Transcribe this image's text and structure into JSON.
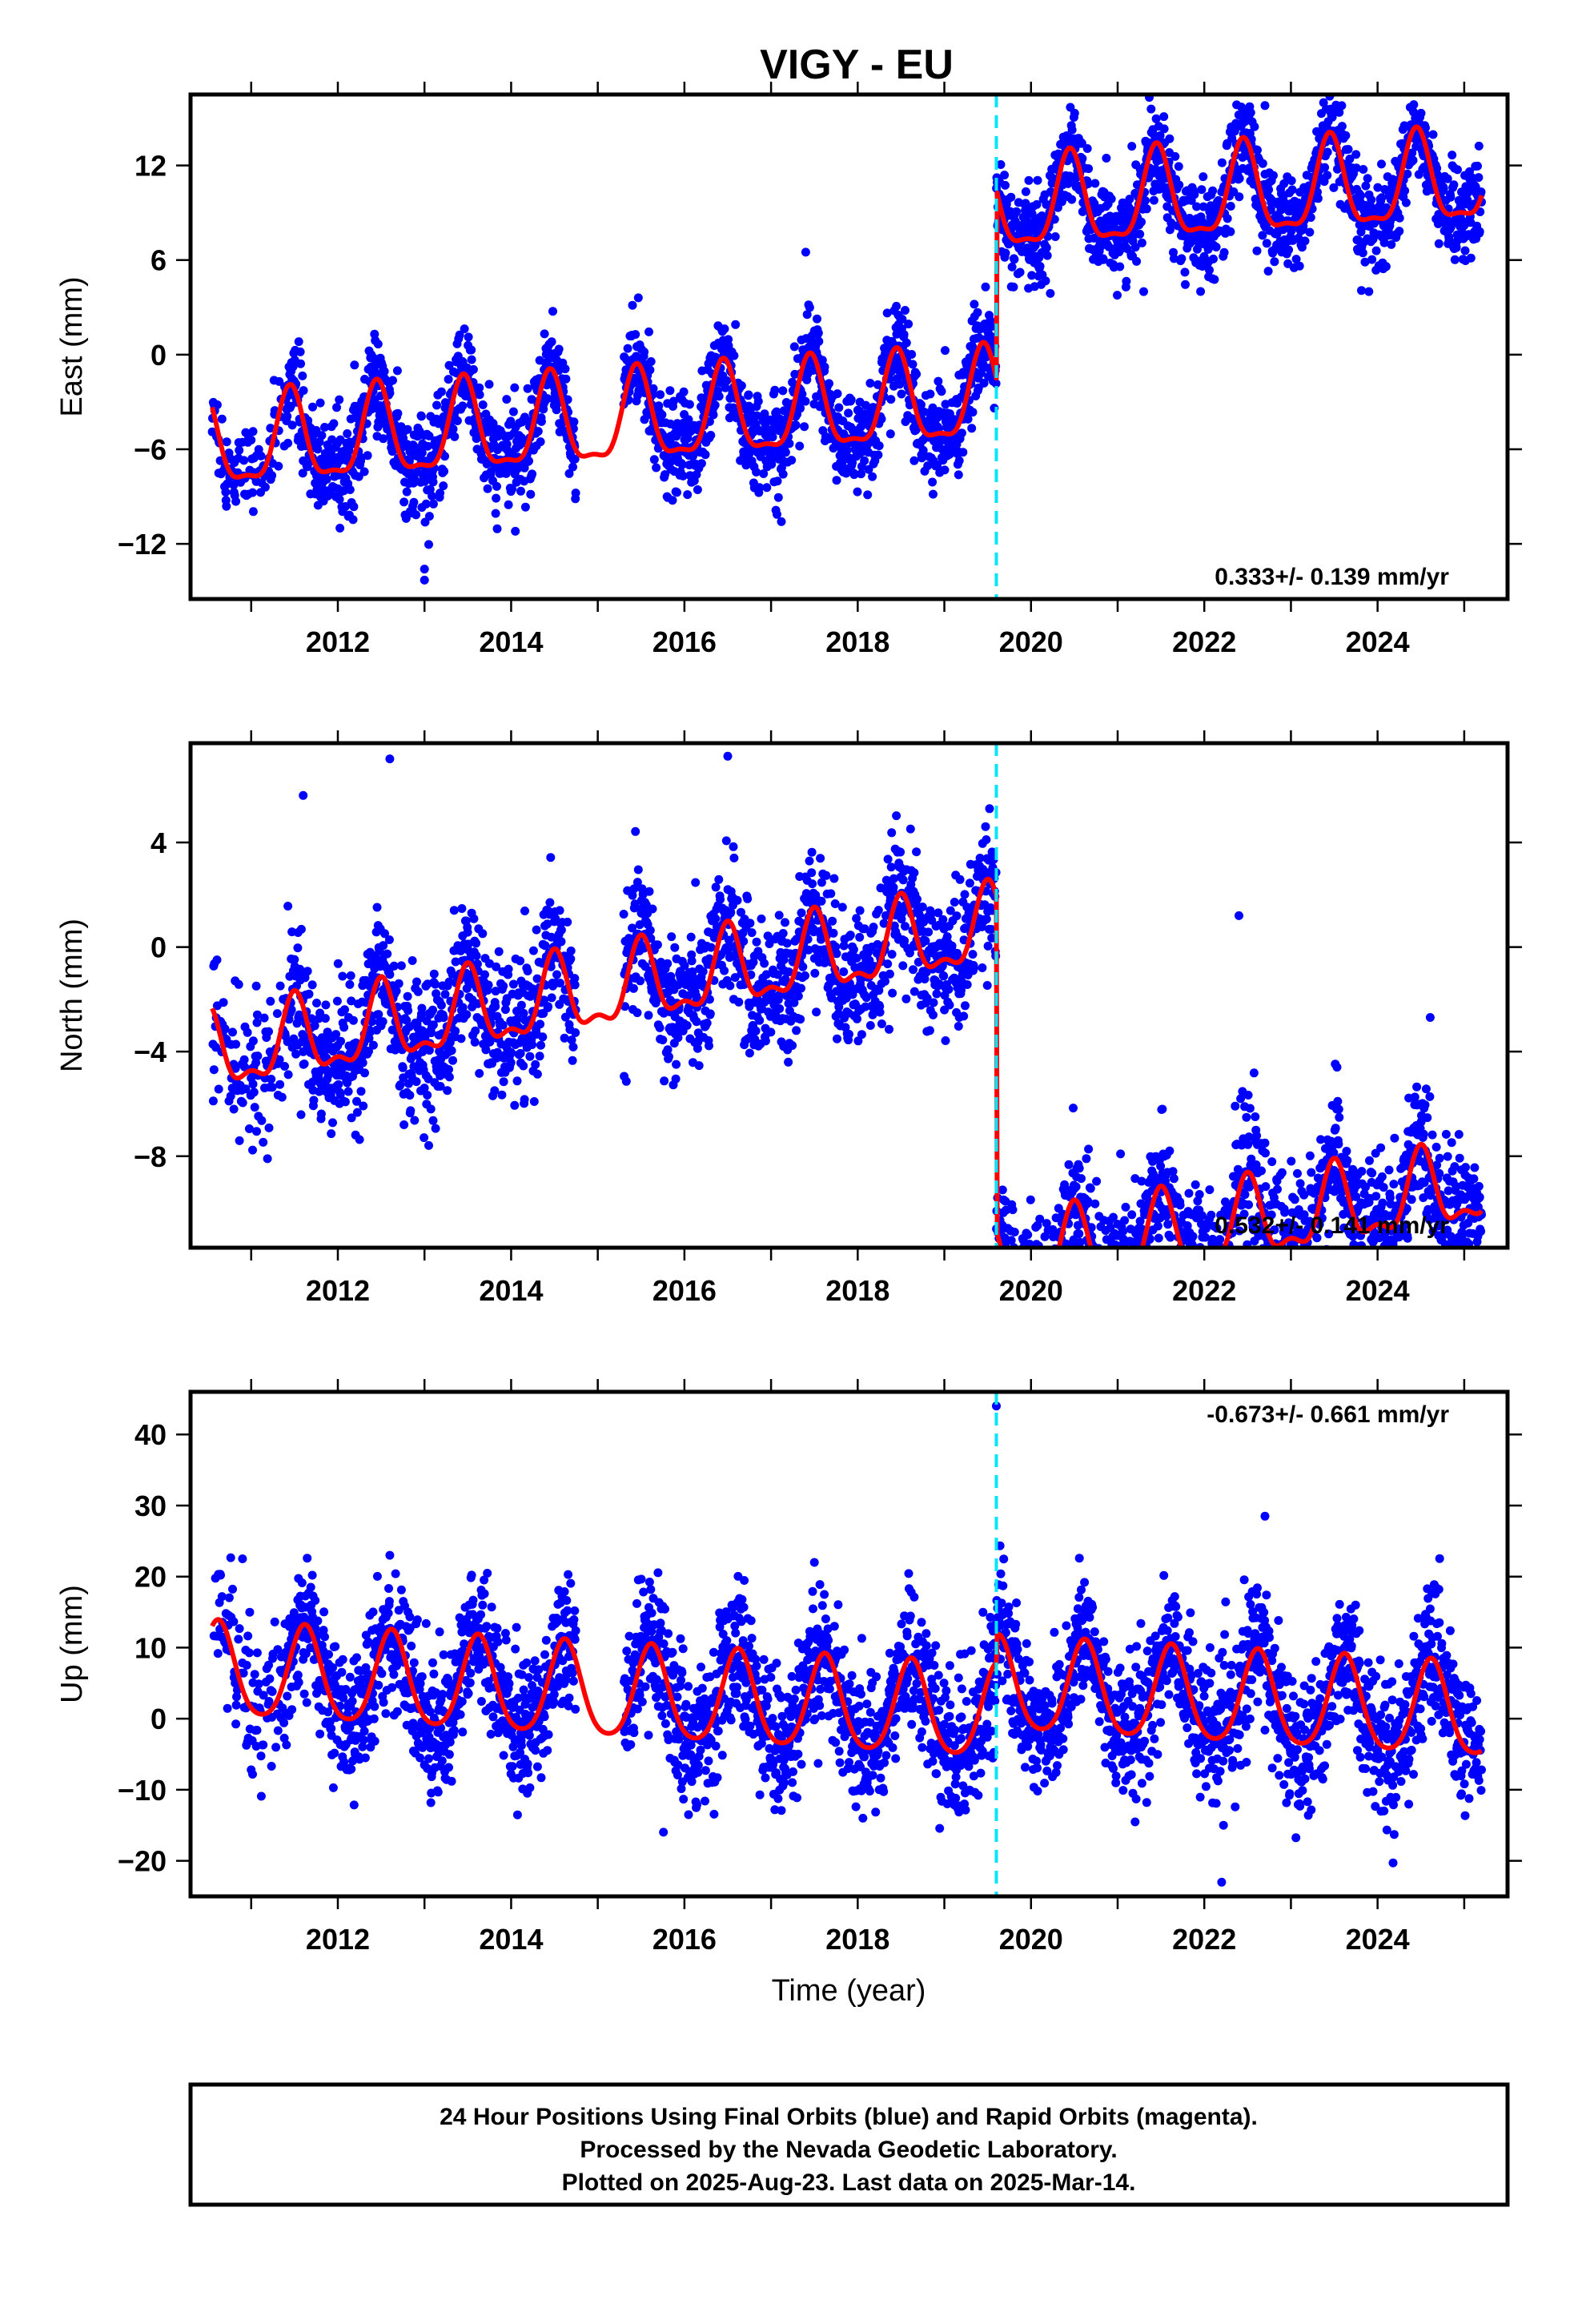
{
  "chart_data": {
    "type": "scatter",
    "title": "VIGY - EU",
    "xlabel": "Time (year)",
    "xlim": [
      2010.3,
      2025.5
    ],
    "xticks": [
      2012,
      2014,
      2016,
      2018,
      2020,
      2022,
      2024
    ],
    "event_line": {
      "x": 2019.6,
      "color": "#00e5ff",
      "style": "dashed"
    },
    "point_color": "#0000ff",
    "model_color": "#ff0000",
    "panels": [
      {
        "id": "east",
        "ylabel": "East (mm)",
        "ylim": [
          -15.5,
          16.5
        ],
        "yticks": [
          -12,
          -6,
          0,
          6,
          12
        ],
        "rate_label": "0.333+/- 0.139 mm/yr",
        "rate_position": "bottom-right",
        "model": {
          "offset_before": -3.4,
          "offset_after": 8.6,
          "trend_per_year": 0.333,
          "annual_amplitude": 2.8,
          "annual_peak_phase": 0.45,
          "semiannual_amplitude": 0.9,
          "jump_year": 2019.6
        },
        "noise_sd": 1.5,
        "outliers": [
          [
            2013.0,
            -14.3
          ],
          [
            2013.0,
            -13.6
          ],
          [
            2017.4,
            6.5
          ],
          [
            2022.7,
            15.8
          ],
          [
            2021.3,
            4.0
          ],
          [
            2023.9,
            4.0
          ]
        ]
      },
      {
        "id": "north",
        "ylabel": "North (mm)",
        "ylim": [
          -11.5,
          7.8
        ],
        "yticks": [
          -8,
          -4,
          0,
          4
        ],
        "rate_label": "0.532+/- 0.141 mm/yr",
        "rate_position": "bottom-right",
        "model": {
          "offset_before": -0.2,
          "offset_after": -13.0,
          "trend_per_year": 0.532,
          "annual_amplitude": 1.4,
          "annual_peak_phase": 0.5,
          "semiannual_amplitude": 0.6,
          "jump_year": 2019.6
        },
        "noise_sd": 1.3,
        "outliers": [
          [
            2012.6,
            7.2
          ],
          [
            2016.5,
            7.3
          ],
          [
            2021.0,
            -10.6
          ],
          [
            2022.4,
            1.2
          ],
          [
            2011.6,
            5.8
          ],
          [
            2010.8,
            -6.2
          ]
        ]
      },
      {
        "id": "up",
        "ylabel": "Up (mm)",
        "ylim": [
          -25,
          46
        ],
        "yticks": [
          -20,
          -10,
          0,
          10,
          20,
          30,
          40
        ],
        "rate_label": "-0.673+/- 0.661 mm/yr",
        "rate_position": "top-right",
        "model": {
          "offset_before": 1.5,
          "offset_after": 5.5,
          "trend_per_year": -0.673,
          "annual_amplitude": 6.5,
          "annual_peak_phase": 0.62,
          "semiannual_amplitude": 1.0,
          "jump_year": 2019.6
        },
        "noise_sd": 4.8,
        "outliers": [
          [
            2019.6,
            44.0
          ],
          [
            2022.7,
            28.5
          ],
          [
            2022.2,
            -23.0
          ],
          [
            2012.6,
            23.0
          ],
          [
            2010.9,
            22.5
          ],
          [
            2017.5,
            22.0
          ]
        ]
      }
    ],
    "data_gaps": [
      [
        2014.75,
        2015.3
      ]
    ]
  },
  "footer": {
    "line1": "24 Hour Positions Using Final Orbits (blue) and Rapid Orbits (magenta).",
    "line2": "Processed by the Nevada Geodetic Laboratory.",
    "line3": "Plotted on 2025-Aug-23. Last data on 2025-Mar-14."
  }
}
